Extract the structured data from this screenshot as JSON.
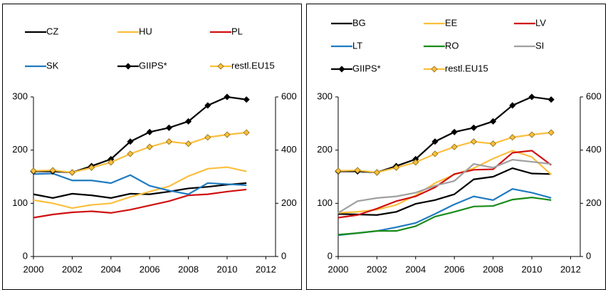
{
  "chart_data": [
    {
      "type": "line",
      "x": [
        2000,
        2001,
        2002,
        2003,
        2004,
        2005,
        2006,
        2007,
        2008,
        2009,
        2010,
        2011
      ],
      "xlim": [
        2000,
        2012.5
      ],
      "xticks": [
        2000,
        2002,
        2004,
        2006,
        2008,
        2010,
        2012
      ],
      "ylim": [
        0,
        300
      ],
      "yticks": [
        0,
        100,
        200,
        300
      ],
      "y2lim": [
        0,
        600
      ],
      "y2ticks": [
        0,
        200,
        400,
        600
      ],
      "series": [
        {
          "name": "CZ",
          "color": "#000000",
          "values": [
            117,
            110,
            118,
            115,
            110,
            118,
            117,
            122,
            128,
            131,
            135,
            138
          ]
        },
        {
          "name": "HU",
          "color": "#fbbf3e",
          "values": [
            106,
            100,
            91,
            97,
            100,
            112,
            122,
            132,
            151,
            165,
            168,
            160
          ]
        },
        {
          "name": "PL",
          "color": "#d01010",
          "values": [
            73,
            79,
            83,
            85,
            82,
            88,
            96,
            104,
            115,
            117,
            122,
            126
          ]
        },
        {
          "name": "SK",
          "color": "#1f7bc0",
          "values": [
            155,
            156,
            143,
            143,
            138,
            153,
            133,
            124,
            117,
            138,
            136,
            134
          ]
        },
        {
          "name": "GIIPS*",
          "color": "#000000",
          "marker": "diamond",
          "axis": "y2",
          "values": [
            320,
            320,
            316,
            340,
            366,
            432,
            468,
            484,
            508,
            568,
            600,
            590
          ]
        },
        {
          "name": "restl.EU15",
          "color": "#fbbf3e",
          "marker": "diamond",
          "axis": "y2",
          "values": [
            322,
            324,
            316,
            334,
            354,
            386,
            412,
            432,
            424,
            448,
            458,
            466
          ]
        }
      ]
    },
    {
      "type": "line",
      "x": [
        2000,
        2001,
        2002,
        2003,
        2004,
        2005,
        2006,
        2007,
        2008,
        2009,
        2010,
        2011
      ],
      "xlim": [
        2000,
        2012.5
      ],
      "xticks": [
        2000,
        2002,
        2004,
        2006,
        2008,
        2010,
        2012
      ],
      "ylim": [
        0,
        300
      ],
      "yticks": [
        0,
        100,
        200,
        300
      ],
      "y2lim": [
        0,
        600
      ],
      "y2ticks": [
        0,
        200,
        400,
        600
      ],
      "series": [
        {
          "name": "BG",
          "color": "#000000",
          "values": [
            80,
            79,
            78,
            84,
            99,
            106,
            117,
            145,
            150,
            166,
            156,
            155
          ]
        },
        {
          "name": "EE",
          "color": "#fbbf3e",
          "values": [
            82,
            84,
            88,
            97,
            115,
            138,
            154,
            166,
            184,
            199,
            187,
            154
          ]
        },
        {
          "name": "LV",
          "color": "#d01010",
          "values": [
            73,
            78,
            90,
            104,
            113,
            130,
            155,
            163,
            164,
            195,
            199,
            172
          ]
        },
        {
          "name": "LT",
          "color": "#1f7bc0",
          "values": [
            40,
            44,
            48,
            55,
            63,
            80,
            98,
            113,
            106,
            127,
            120,
            110
          ]
        },
        {
          "name": "RO",
          "color": "#1a8c1a",
          "values": [
            41,
            44,
            48,
            48,
            57,
            75,
            84,
            94,
            95,
            107,
            111,
            106
          ]
        },
        {
          "name": "SI",
          "color": "#a0a0a0",
          "values": [
            82,
            104,
            110,
            113,
            120,
            133,
            142,
            174,
            167,
            182,
            178,
            174
          ]
        },
        {
          "name": "GIIPS*",
          "color": "#000000",
          "marker": "diamond",
          "axis": "y2",
          "values": [
            320,
            320,
            316,
            340,
            366,
            432,
            468,
            484,
            508,
            568,
            600,
            590
          ]
        },
        {
          "name": "restl.EU15",
          "color": "#fbbf3e",
          "marker": "diamond",
          "axis": "y2",
          "values": [
            322,
            324,
            316,
            334,
            354,
            386,
            412,
            432,
            424,
            448,
            458,
            466
          ]
        }
      ]
    }
  ]
}
